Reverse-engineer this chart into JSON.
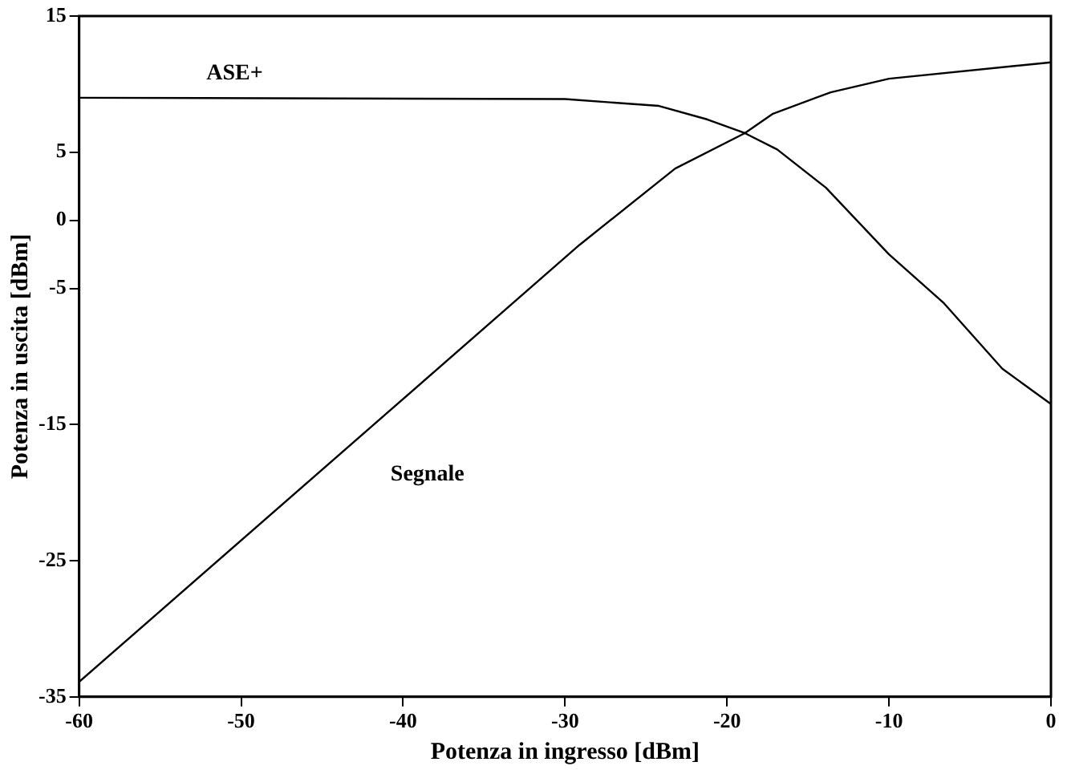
{
  "chart_data": {
    "type": "line",
    "xlabel": "Potenza in ingresso [dBm]",
    "ylabel": "Potenza in uscita [dBm]",
    "xlim": [
      -60,
      0
    ],
    "xticks": [
      -60,
      -50,
      -40,
      -30,
      -20,
      -10,
      0
    ],
    "ylim": [
      -35,
      15
    ],
    "yticks": [
      -35,
      -25,
      -15,
      -5,
      0,
      5,
      15
    ],
    "grid": false,
    "legend": false,
    "marker": "none",
    "line_style": "solid",
    "series": [
      {
        "name": "ASE+",
        "color": "#000000",
        "x": [
          -60,
          -30,
          -24.2,
          -21.2,
          -18.9,
          -16.9,
          -13.9,
          -10,
          -6.6,
          -3,
          0
        ],
        "values": [
          9,
          8.9,
          8.4,
          7.4,
          6.4,
          5.2,
          2.4,
          -2.5,
          -6.1,
          -10.9,
          -13.5
        ]
      },
      {
        "name": "Segnale",
        "color": "#000000",
        "x": [
          -60,
          -29.1,
          -23.2,
          -18.9,
          -17.2,
          -13.6,
          -10,
          0
        ],
        "values": [
          -33.9,
          -1.8,
          3.8,
          6.4,
          7.8,
          9.4,
          10.4,
          11.6
        ]
      }
    ]
  }
}
